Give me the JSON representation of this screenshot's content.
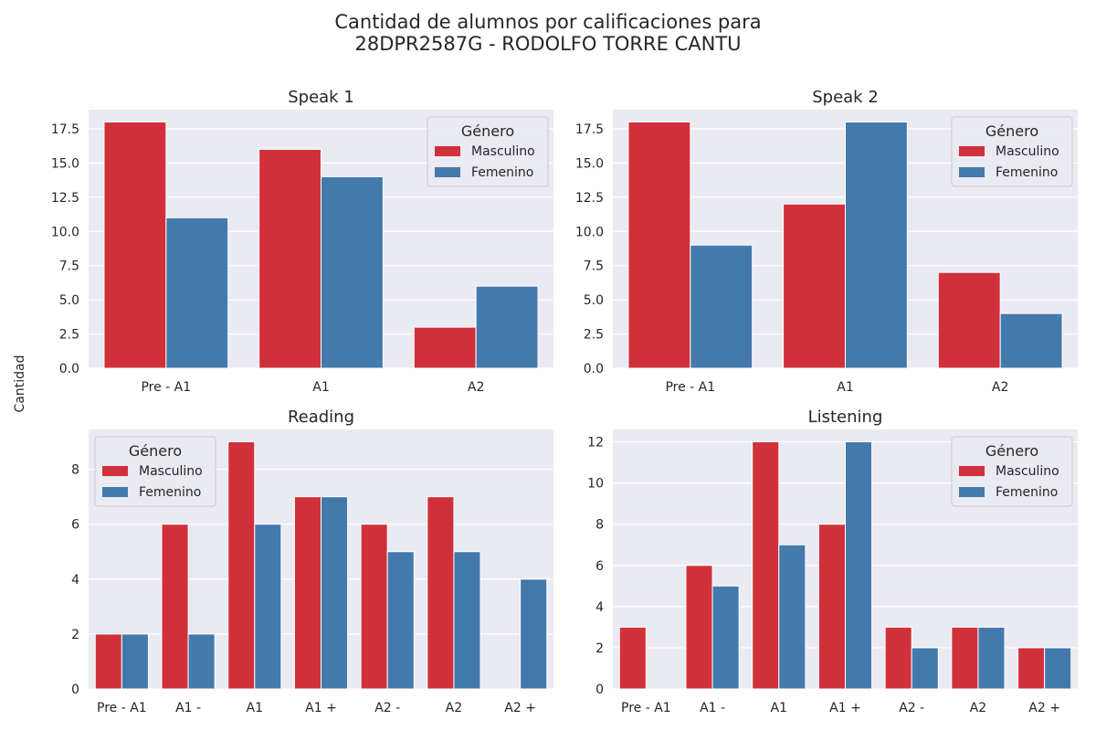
{
  "figure": {
    "title_line1": "Cantidad de alumnos por calificaciones para",
    "title_line2": "28DPR2587G - RODOLFO TORRE CANTU",
    "ylabel": "Cantidad"
  },
  "colors": {
    "Masculino": "#d0303a",
    "Femenino": "#4479ac",
    "plot_bg": "#eaeaf2",
    "grid": "#ffffff"
  },
  "chart_data": [
    {
      "type": "bar",
      "title": "Speak 1",
      "categories": [
        "Pre - A1",
        "A1",
        "A2"
      ],
      "series": [
        {
          "name": "Masculino",
          "values": [
            18,
            16,
            3
          ]
        },
        {
          "name": "Femenino",
          "values": [
            11,
            14,
            6
          ]
        }
      ],
      "ylim": [
        0,
        18.9
      ],
      "yticks": [
        "0.0",
        "2.5",
        "5.0",
        "7.5",
        "10.0",
        "12.5",
        "15.0",
        "17.5"
      ],
      "legend": {
        "title": "Género",
        "placement": "top-right"
      }
    },
    {
      "type": "bar",
      "title": "Speak 2",
      "categories": [
        "Pre - A1",
        "A1",
        "A2"
      ],
      "series": [
        {
          "name": "Masculino",
          "values": [
            18,
            12,
            7
          ]
        },
        {
          "name": "Femenino",
          "values": [
            9,
            18,
            4
          ]
        }
      ],
      "ylim": [
        0,
        18.9
      ],
      "yticks": [
        "0.0",
        "2.5",
        "5.0",
        "7.5",
        "10.0",
        "12.5",
        "15.0",
        "17.5"
      ],
      "legend": {
        "title": "Género",
        "placement": "top-right"
      }
    },
    {
      "type": "bar",
      "title": "Reading",
      "categories": [
        "Pre - A1",
        "A1 -",
        "A1",
        "A1 +",
        "A2 -",
        "A2",
        "A2 +"
      ],
      "series": [
        {
          "name": "Masculino",
          "values": [
            2,
            6,
            9,
            7,
            6,
            7,
            0
          ]
        },
        {
          "name": "Femenino",
          "values": [
            2,
            2,
            6,
            7,
            5,
            5,
            4
          ]
        }
      ],
      "ylim": [
        0,
        9.45
      ],
      "yticks": [
        "0",
        "2",
        "4",
        "6",
        "8"
      ],
      "legend": {
        "title": "Género",
        "placement": "top-left"
      }
    },
    {
      "type": "bar",
      "title": "Listening",
      "categories": [
        "Pre - A1",
        "A1 -",
        "A1",
        "A1 +",
        "A2 -",
        "A2",
        "A2 +"
      ],
      "series": [
        {
          "name": "Masculino",
          "values": [
            3,
            6,
            12,
            8,
            3,
            3,
            2
          ]
        },
        {
          "name": "Femenino",
          "values": [
            0,
            5,
            7,
            12,
            2,
            3,
            2
          ]
        }
      ],
      "ylim": [
        0,
        12.6
      ],
      "yticks": [
        "0",
        "2",
        "4",
        "6",
        "8",
        "10",
        "12"
      ],
      "legend": {
        "title": "Género",
        "placement": "top-right"
      }
    }
  ]
}
